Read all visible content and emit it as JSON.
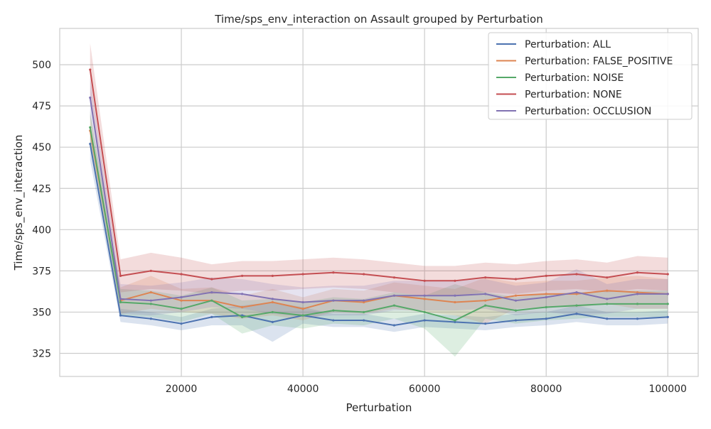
{
  "chart_data": {
    "type": "line",
    "title": "Time/sps_env_interaction on Assault grouped by Perturbation",
    "xlabel": "Perturbation",
    "ylabel": "Time/sps_env_interaction",
    "xlim": [
      0,
      105000
    ],
    "ylim": [
      311,
      522
    ],
    "xticks": [
      20000,
      40000,
      60000,
      80000,
      100000
    ],
    "xtick_labels": [
      "20000",
      "40000",
      "60000",
      "80000",
      "100000"
    ],
    "yticks": [
      325,
      350,
      375,
      400,
      425,
      450,
      475,
      500
    ],
    "ytick_labels": [
      "325",
      "350",
      "375",
      "400",
      "425",
      "450",
      "475",
      "500"
    ],
    "grid": true,
    "legend_position": "top-right",
    "x": [
      5000,
      10000,
      15000,
      20000,
      25000,
      30000,
      35000,
      40000,
      45000,
      50000,
      55000,
      60000,
      65000,
      70000,
      75000,
      80000,
      85000,
      90000,
      95000,
      100000
    ],
    "series": [
      {
        "name": "Perturbation: ALL",
        "color": "#4c72b0",
        "values": [
          452,
          348,
          346,
          343,
          347,
          348,
          344,
          348,
          345,
          345,
          342,
          345,
          344,
          343,
          345,
          346,
          349,
          346,
          346,
          347
        ],
        "band": [
          10,
          4,
          4,
          4,
          5,
          6,
          12,
          5,
          4,
          4,
          4,
          4,
          4,
          4,
          4,
          4,
          5,
          4,
          4,
          4
        ]
      },
      {
        "name": "Perturbation: FALSE_POSITIVE",
        "color": "#dd8452",
        "values": [
          460,
          357,
          362,
          357,
          357,
          353,
          356,
          352,
          357,
          356,
          360,
          358,
          356,
          357,
          360,
          361,
          361,
          363,
          362,
          361
        ],
        "band": [
          10,
          8,
          10,
          7,
          8,
          7,
          8,
          7,
          7,
          7,
          8,
          8,
          8,
          14,
          8,
          8,
          8,
          8,
          10,
          9
        ]
      },
      {
        "name": "Perturbation: NOISE",
        "color": "#55a868",
        "values": [
          462,
          356,
          355,
          352,
          357,
          347,
          350,
          348,
          351,
          350,
          354,
          350,
          345,
          354,
          351,
          353,
          354,
          355,
          355,
          355
        ],
        "band": [
          10,
          8,
          8,
          8,
          8,
          10,
          8,
          8,
          8,
          8,
          8,
          10,
          22,
          8,
          8,
          8,
          8,
          8,
          8,
          8
        ]
      },
      {
        "name": "Perturbation: NONE",
        "color": "#c44e52",
        "values": [
          497,
          372,
          375,
          373,
          370,
          372,
          372,
          373,
          374,
          373,
          371,
          369,
          369,
          371,
          370,
          372,
          373,
          371,
          374,
          373
        ],
        "band": [
          16,
          10,
          11,
          10,
          9,
          9,
          9,
          9,
          9,
          9,
          9,
          9,
          9,
          9,
          9,
          9,
          9,
          9,
          10,
          10
        ]
      },
      {
        "name": "Perturbation: OCCLUSION",
        "color": "#8172b2",
        "values": [
          480,
          358,
          357,
          359,
          362,
          361,
          358,
          356,
          357,
          357,
          360,
          360,
          360,
          361,
          357,
          359,
          362,
          358,
          361,
          361
        ],
        "band": [
          12,
          9,
          9,
          9,
          9,
          9,
          9,
          9,
          9,
          9,
          9,
          9,
          9,
          9,
          9,
          9,
          14,
          9,
          9,
          9
        ]
      }
    ]
  }
}
